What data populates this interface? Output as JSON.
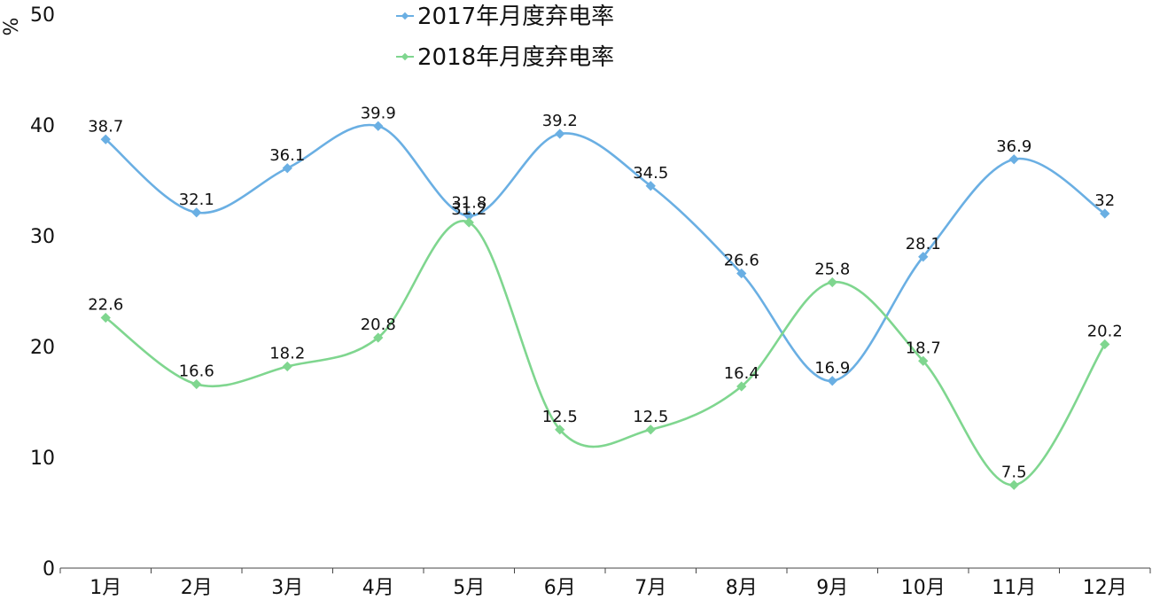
{
  "chart_data": {
    "type": "line",
    "title": "",
    "xlabel": "",
    "ylabel": "%",
    "ylim": [
      0,
      50
    ],
    "yticks": [
      0,
      10,
      20,
      30,
      40,
      50
    ],
    "categories": [
      "1月",
      "2月",
      "3月",
      "4月",
      "5月",
      "6月",
      "7月",
      "8月",
      "9月",
      "10月",
      "11月",
      "12月"
    ],
    "legend_position": "top-center",
    "grid": false,
    "smooth": true,
    "series": [
      {
        "name": "2017年月度弃电率",
        "color": "#6aafe3",
        "values": [
          38.7,
          32.1,
          36.1,
          39.9,
          31.8,
          39.2,
          34.5,
          26.6,
          16.9,
          28.1,
          36.9,
          32
        ],
        "labels": [
          "38.7",
          "32.1",
          "36.1",
          "39.9",
          "31.8",
          "39.2",
          "34.5",
          "26.6",
          "16.9",
          "28.1",
          "36.9",
          "32"
        ]
      },
      {
        "name": "2018年月度弃电率",
        "color": "#7fd68f",
        "values": [
          22.6,
          16.6,
          18.2,
          20.8,
          31.2,
          12.5,
          12.5,
          16.4,
          25.8,
          18.7,
          7.5,
          20.2
        ],
        "labels": [
          "22.6",
          "16.6",
          "18.2",
          "20.8",
          "31.2",
          "12.5",
          "12.5",
          "16.4",
          "25.8",
          "18.7",
          "7.5",
          "20.2"
        ]
      }
    ]
  }
}
